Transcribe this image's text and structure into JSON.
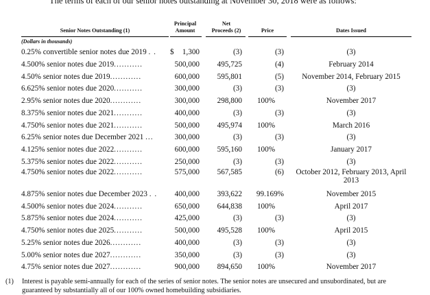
{
  "intro": "The terms of each of our senior notes outstanding at November 30, 2018 were as follows:",
  "headers": {
    "notes": "Senior Notes Outstanding (1)",
    "principal_line1": "Principal",
    "principal_line2": "Amount",
    "net_line1": "Net",
    "net_line2": "Proceeds (2)",
    "price": "Price",
    "dates": "Dates Issued"
  },
  "units": "(Dollars in thousands)",
  "dollar_sign": "$",
  "rows": [
    {
      "desc": "0.25% convertible senior notes due 2019",
      "dots": ". .",
      "amount": "1,300",
      "net": "(3)",
      "price": "(3)",
      "dates": "(3)"
    },
    {
      "desc": "4.500% senior notes due 2019",
      "dots": "...........",
      "amount": "500,000",
      "net": "495,725",
      "price": "(4)",
      "dates": "February 2014"
    },
    {
      "desc": "4.50% senior notes due 2019",
      "dots": "............",
      "amount": "600,000",
      "net": "595,801",
      "price": "(5)",
      "dates": "November 2014, February 2015"
    },
    {
      "desc": "6.625% senior notes due 2020",
      "dots": "...........",
      "amount": "300,000",
      "net": "(3)",
      "price": "(3)",
      "dates": "(3)"
    },
    {
      "desc": "2.95% senior notes due 2020",
      "dots": "............",
      "amount": "300,000",
      "net": "298,800",
      "price": "100%",
      "dates": "November 2017"
    },
    {
      "desc": "8.375% senior notes due 2021",
      "dots": "...........",
      "amount": "400,000",
      "net": "(3)",
      "price": "(3)",
      "dates": "(3)"
    },
    {
      "desc": "4.750% senior notes due 2021",
      "dots": "...........",
      "amount": "500,000",
      "net": "495,974",
      "price": "100%",
      "dates": "March 2016"
    },
    {
      "desc": "6.25% senior notes due December 2021",
      "dots": "...",
      "amount": "300,000",
      "net": "(3)",
      "price": "(3)",
      "dates": "(3)"
    },
    {
      "desc": "4.125% senior notes due 2022",
      "dots": "...........",
      "amount": "600,000",
      "net": "595,160",
      "price": "100%",
      "dates": "January 2017"
    },
    {
      "desc": "5.375% senior notes due 2022",
      "dots": "...........",
      "amount": "250,000",
      "net": "(3)",
      "price": "(3)",
      "dates": "(3)"
    },
    {
      "desc": "4.750% senior notes due 2022",
      "dots": "...........",
      "amount": "575,000",
      "net": "567,585",
      "price": "(6)",
      "dates": "October 2012, February 2013, April 2013"
    },
    {
      "desc": "4.875% senior notes due December 2023",
      "dots": ". .",
      "amount": "400,000",
      "net": "393,622",
      "price": "99.169%",
      "dates": "November 2015"
    },
    {
      "desc": "4.500% senior notes due 2024",
      "dots": "...........",
      "amount": "650,000",
      "net": "644,838",
      "price": "100%",
      "dates": "April 2017"
    },
    {
      "desc": "5.875% senior notes due 2024",
      "dots": "...........",
      "amount": "425,000",
      "net": "(3)",
      "price": "(3)",
      "dates": "(3)"
    },
    {
      "desc": "4.750% senior notes due 2025",
      "dots": "...........",
      "amount": "500,000",
      "net": "495,528",
      "price": "100%",
      "dates": "April 2015"
    },
    {
      "desc": "5.25% senior notes due 2026",
      "dots": "............",
      "amount": "400,000",
      "net": "(3)",
      "price": "(3)",
      "dates": "(3)"
    },
    {
      "desc": "5.00% senior notes due 2027",
      "dots": "............",
      "amount": "350,000",
      "net": "(3)",
      "price": "(3)",
      "dates": "(3)"
    },
    {
      "desc": "4.75% senior notes due 2027",
      "dots": "............",
      "amount": "900,000",
      "net": "894,650",
      "price": "100%",
      "dates": "November 2017"
    }
  ],
  "footnote": {
    "number": "(1)",
    "text": "Interest is payable semi-annually for each of the series of senior notes. The senior notes are unsecured and unsubordinated, but are guaranteed by substantially all of our 100% owned homebuilding subsidiaries."
  }
}
